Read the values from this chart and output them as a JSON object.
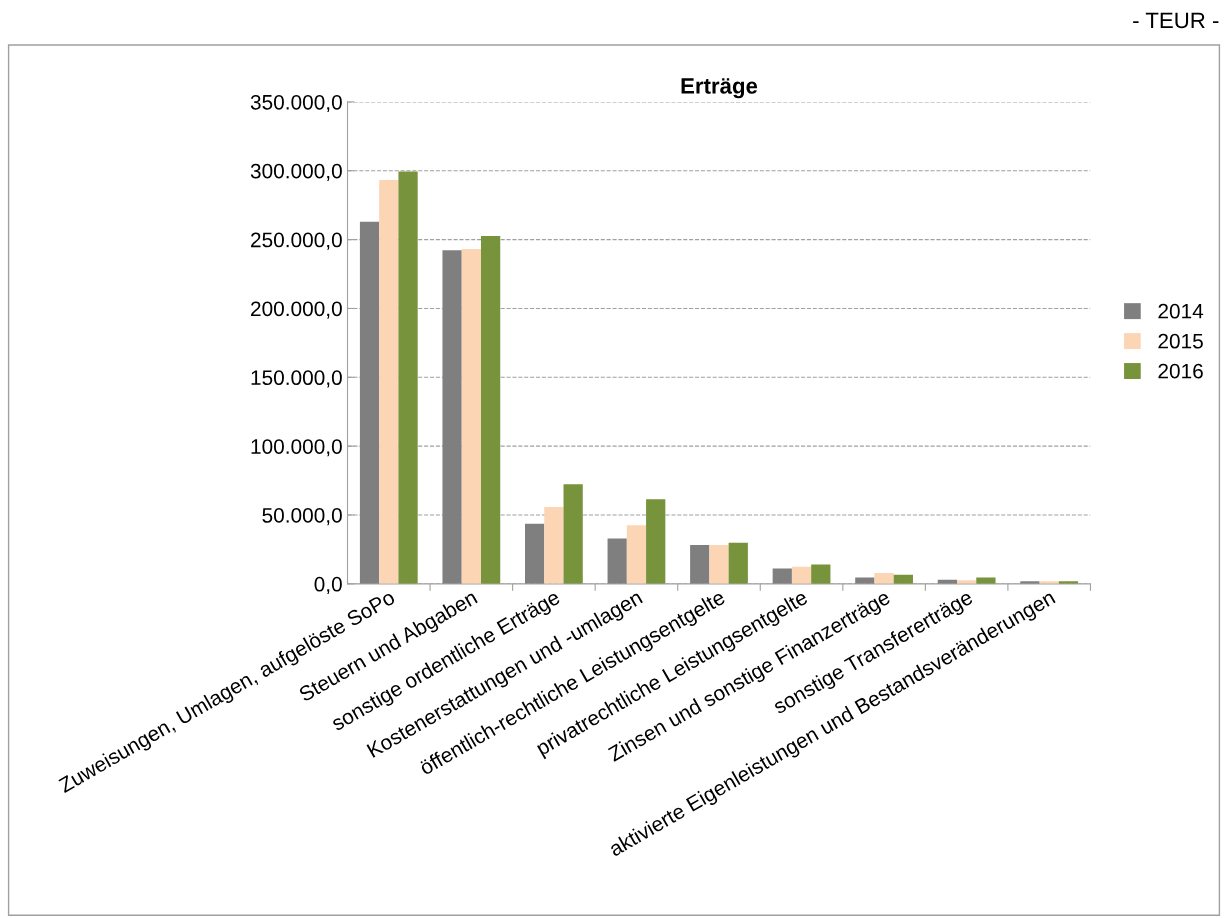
{
  "chart_data": {
    "type": "bar",
    "title": "Erträge",
    "categories": [
      "Zuweisungen, Umlagen, aufgelöste SoPo",
      "Steuern und Abgaben",
      "sonstige ordentliche Erträge",
      "Kostenerstattungen und -umlagen",
      "öffentlich-rechtliche Leistungsentgelte",
      "privatrechtliche Leistungsentgelte",
      "Zinsen und sonstige Finanzerträge",
      "sonstige Transfererträge",
      "aktivierte Eigenleistungen und Bestandsveränderungen"
    ],
    "series": [
      {
        "name": "2014",
        "color": "#7f7f7f",
        "values": [
          262900,
          242200,
          43700,
          33000,
          28300,
          11200,
          4600,
          2900,
          1900
        ]
      },
      {
        "name": "2015",
        "color": "#fcd5b5",
        "values": [
          293200,
          243200,
          55800,
          42500,
          28300,
          12400,
          7800,
          2700,
          1900
        ]
      },
      {
        "name": "2016",
        "color": "#77933c",
        "values": [
          299500,
          252700,
          72300,
          61400,
          29900,
          14100,
          6600,
          4600,
          1900
        ]
      }
    ],
    "ylim": [
      0,
      350000
    ],
    "yticks": [
      {
        "value": 0,
        "label": "0,0"
      },
      {
        "value": 50000,
        "label": "50.000,0"
      },
      {
        "value": 100000,
        "label": "100.000,0"
      },
      {
        "value": 150000,
        "label": "150.000,0"
      },
      {
        "value": 200000,
        "label": "200.000,0"
      },
      {
        "value": 250000,
        "label": "250.000,0"
      },
      {
        "value": 300000,
        "label": "300.000,0"
      },
      {
        "value": 350000,
        "label": "350.000,0"
      }
    ],
    "grid": "y",
    "legend": "right",
    "annotations": [
      "- TEUR -"
    ]
  }
}
